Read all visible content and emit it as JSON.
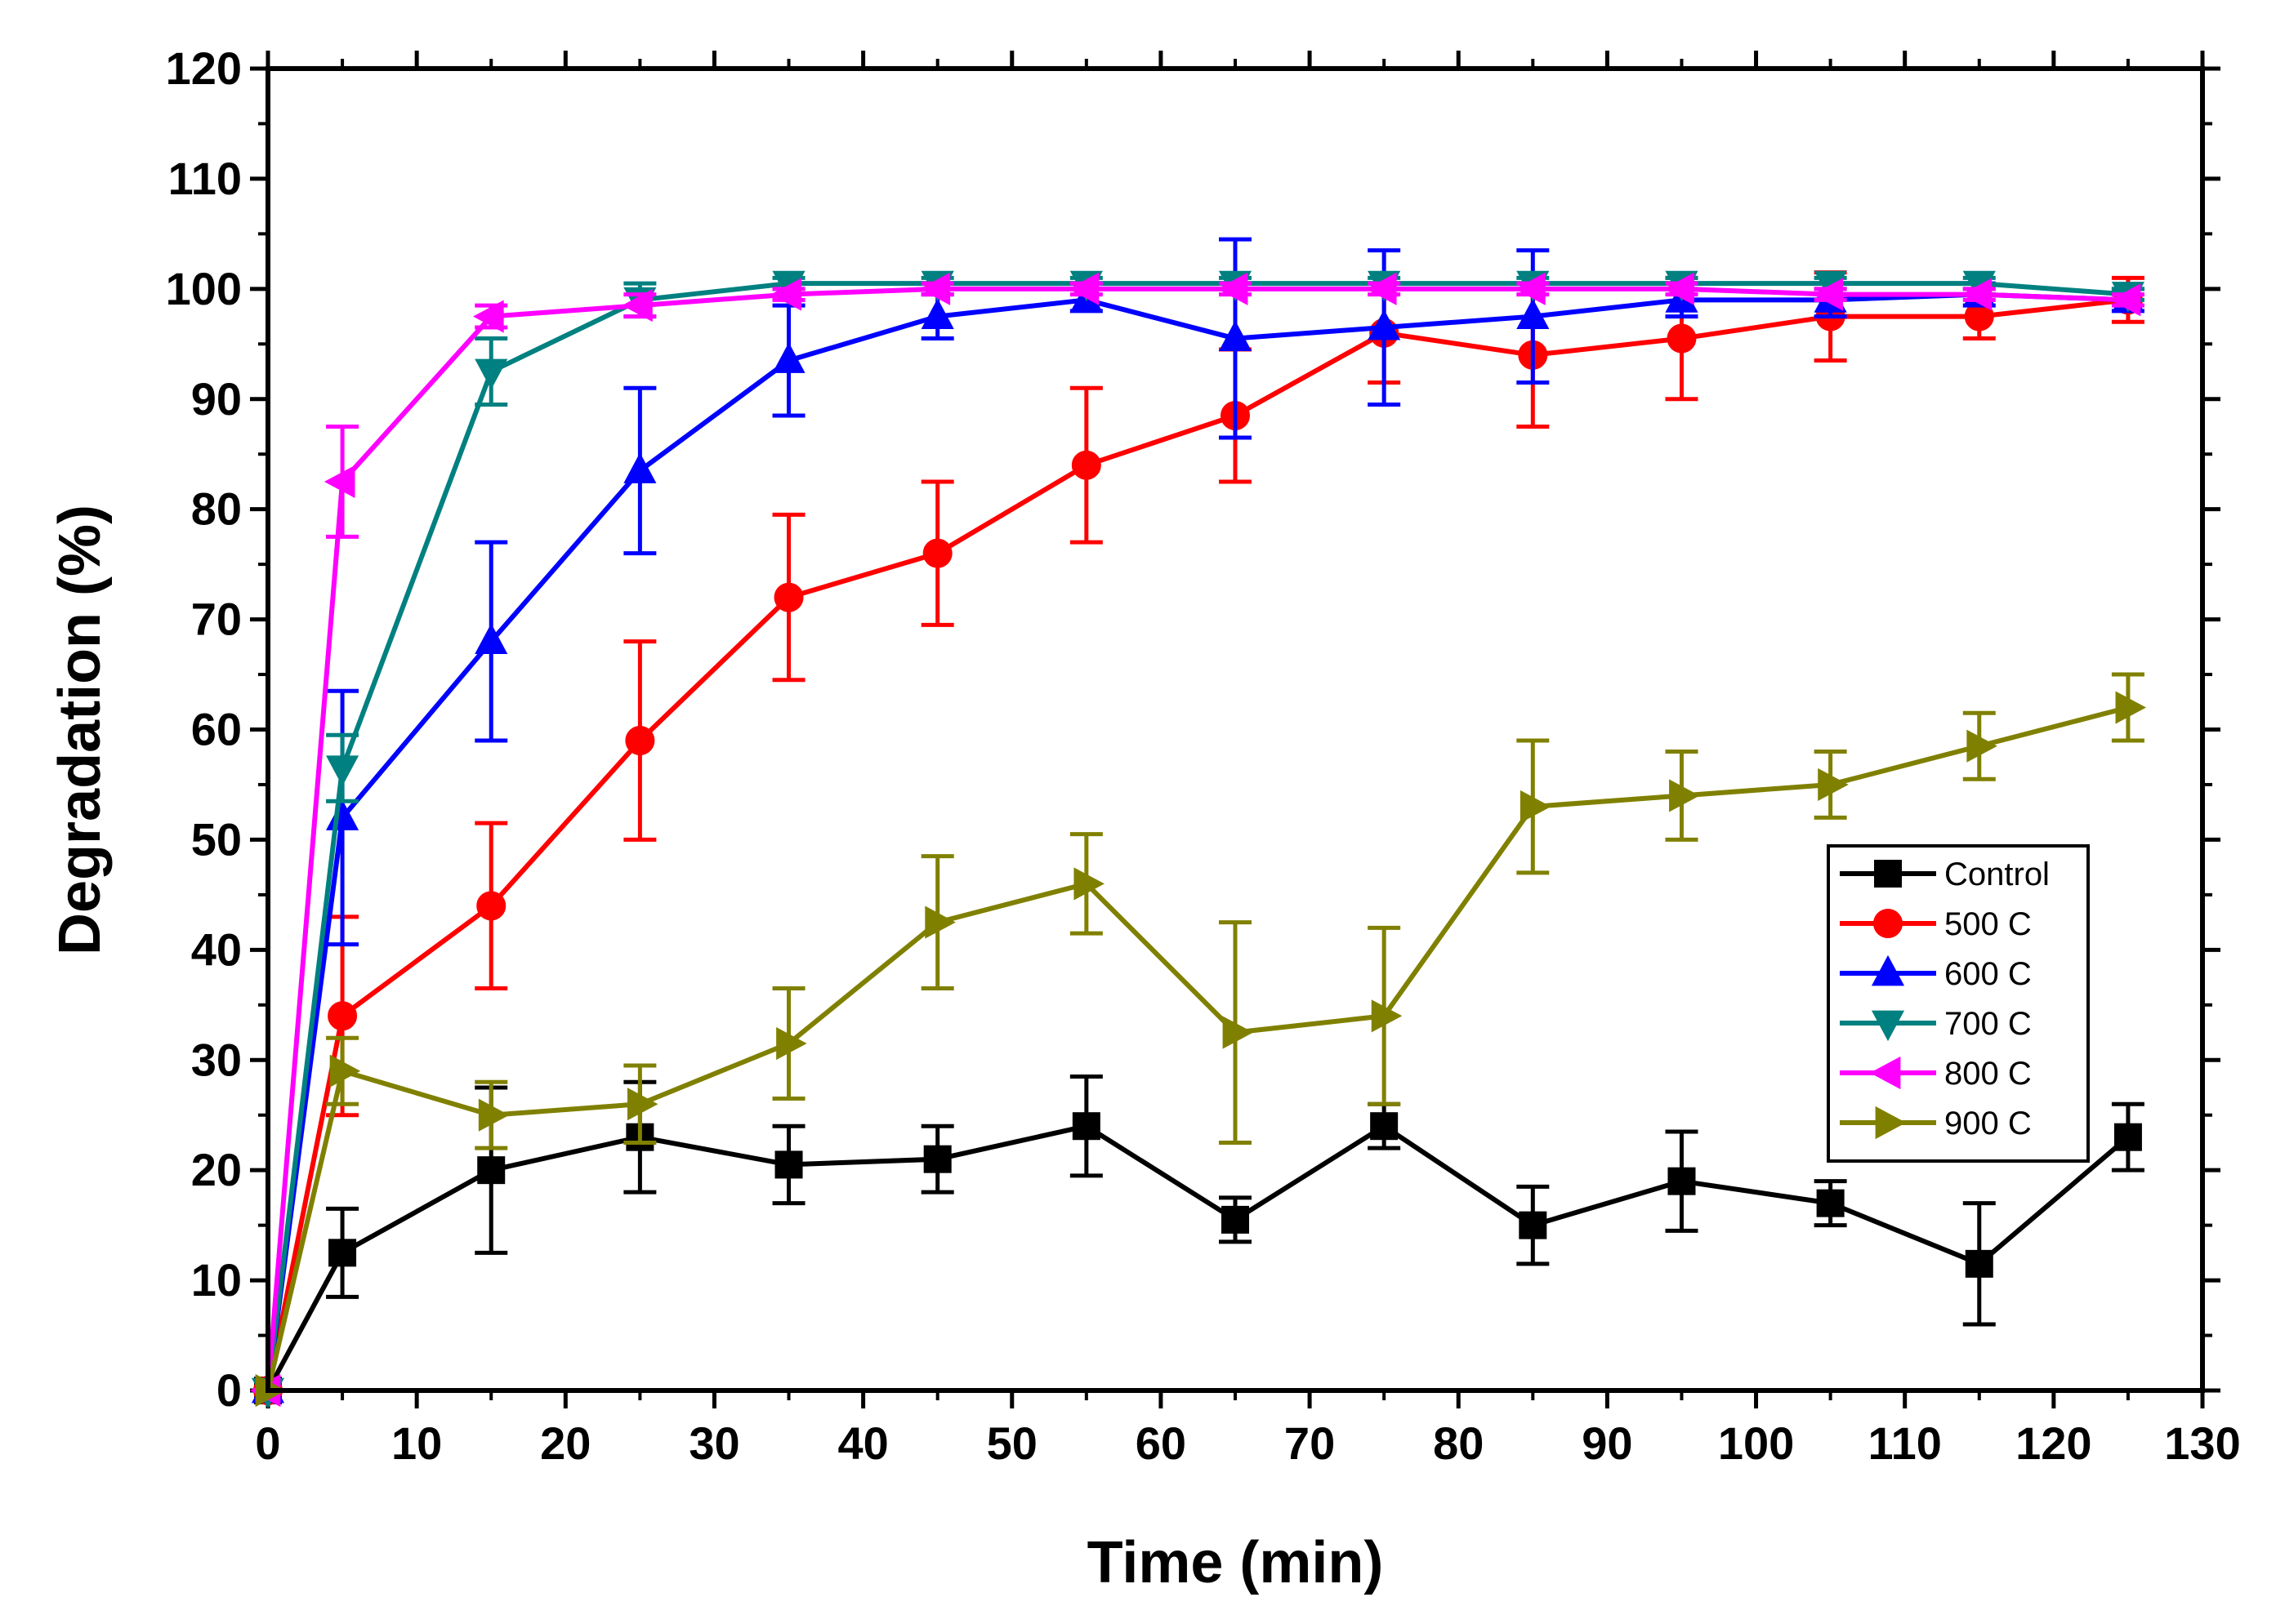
{
  "chart_data": {
    "type": "line",
    "xlabel": "Time (min)",
    "ylabel": "Degradation (%)",
    "xlim": [
      0,
      130
    ],
    "ylim": [
      0,
      120
    ],
    "x_ticks": [
      "0",
      "10",
      "20",
      "30",
      "40",
      "50",
      "60",
      "70",
      "80",
      "90",
      "100",
      "110",
      "120",
      "130"
    ],
    "y_ticks": [
      "0",
      "10",
      "20",
      "30",
      "40",
      "50",
      "60",
      "70",
      "80",
      "90",
      "100",
      "110",
      "120"
    ],
    "x": [
      0,
      5,
      15,
      25,
      35,
      45,
      55,
      65,
      75,
      85,
      95,
      105,
      115,
      125
    ],
    "grid": false,
    "legend_position": "right",
    "series": [
      {
        "name": "Control",
        "color": "#000000",
        "marker": "square",
        "values": [
          0,
          12.5,
          20,
          23,
          20.5,
          21,
          24,
          15.5,
          24,
          15,
          19,
          17,
          11.5,
          23
        ],
        "errors": [
          0,
          4,
          7.5,
          5,
          3.5,
          3,
          4.5,
          2,
          2,
          3.5,
          4.5,
          2,
          5.5,
          3
        ]
      },
      {
        "name": "500 C",
        "color": "#ff0000",
        "marker": "circle",
        "values": [
          0,
          34,
          44,
          59,
          72,
          76,
          84,
          88.5,
          96,
          94,
          95.5,
          97.5,
          97.5,
          99
        ],
        "errors": [
          0,
          9,
          7.5,
          9,
          7.5,
          6.5,
          7,
          6,
          4.5,
          6.5,
          5.5,
          4,
          2,
          2
        ]
      },
      {
        "name": "600 C",
        "color": "#0000ff",
        "marker": "triangle-up",
        "values": [
          0,
          52,
          68,
          83.5,
          93.5,
          97.5,
          99,
          95.5,
          96.5,
          97.5,
          99,
          99,
          99.5,
          99
        ],
        "errors": [
          0,
          11.5,
          9,
          7.5,
          5,
          2,
          1,
          9,
          7,
          6,
          1.5,
          1.5,
          1,
          1
        ]
      },
      {
        "name": "700 C",
        "color": "#008080",
        "marker": "triangle-down",
        "values": [
          0,
          56.5,
          92.5,
          99,
          100.5,
          100.5,
          100.5,
          100.5,
          100.5,
          100.5,
          100.5,
          100.5,
          100.5,
          99.5
        ],
        "errors": [
          0,
          3,
          3,
          1.5,
          0.5,
          0.5,
          0.5,
          0.5,
          0.5,
          0.5,
          0.5,
          0.5,
          0.5,
          0.5
        ]
      },
      {
        "name": " 800 C",
        "color": "#ff00ff",
        "marker": "triangle-left",
        "values": [
          0,
          82.5,
          97.5,
          98.5,
          99.5,
          100,
          100,
          100,
          100,
          100,
          100,
          99.5,
          99.5,
          99
        ],
        "errors": [
          0,
          5,
          1,
          1,
          0.5,
          0.5,
          0.5,
          0.5,
          0.5,
          0.5,
          0.5,
          0.5,
          0.5,
          0.5
        ]
      },
      {
        "name": "900 C",
        "color": "#808000",
        "marker": "triangle-right",
        "values": [
          0,
          29,
          25,
          26,
          31.5,
          42.5,
          46,
          32.5,
          34,
          53,
          54,
          55,
          58.5,
          62
        ],
        "errors": [
          0,
          3,
          3,
          3.5,
          5,
          6,
          4.5,
          10,
          8,
          6,
          4,
          3,
          3,
          3
        ]
      }
    ]
  }
}
